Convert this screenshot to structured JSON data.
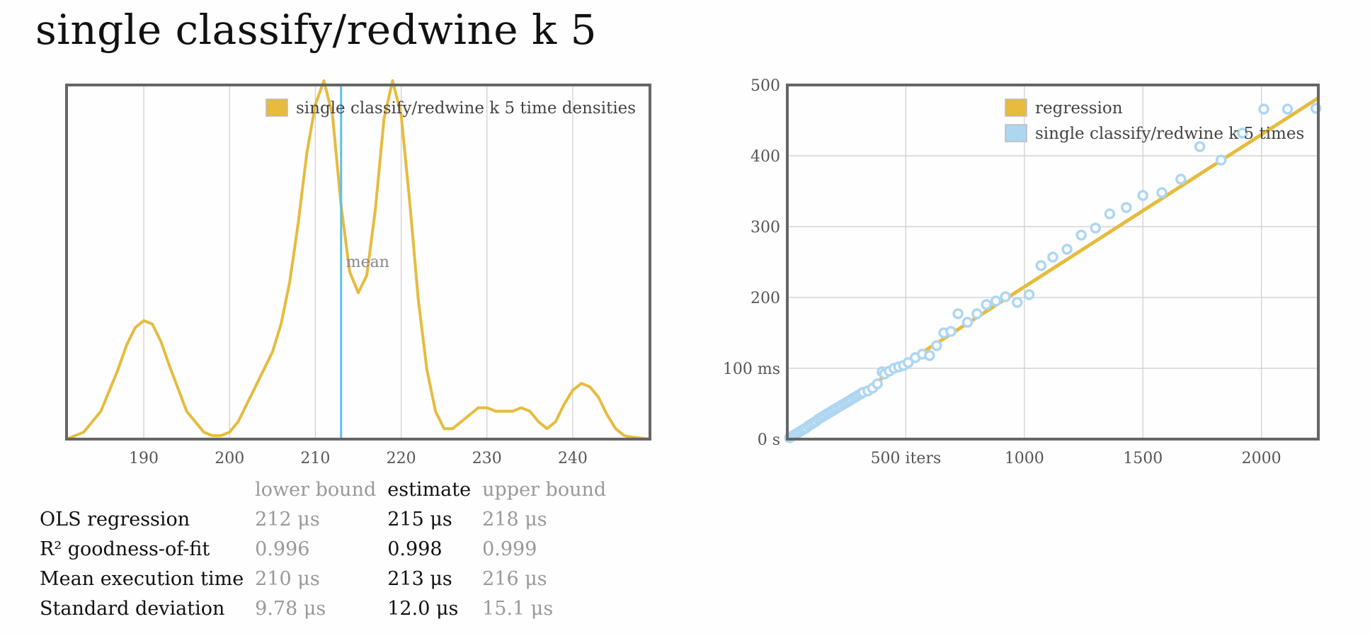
{
  "title": "single classify/redwine k 5",
  "colors": {
    "density": "#e6bb3e",
    "mean_line": "#5bc0eb",
    "regression": "#e6bb3e",
    "points": "#aed6f1",
    "frame": "#666666",
    "grid": "#cccccc"
  },
  "chart_data": [
    {
      "type": "line",
      "name": "kde",
      "legend": "single classify/redwine k 5 time densities",
      "xlim": [
        181,
        249
      ],
      "ylim": [
        0,
        1
      ],
      "x_ticks": [
        "190",
        "200",
        "210",
        "220",
        "230",
        "240"
      ],
      "x_tick_values": [
        190,
        200,
        210,
        220,
        230,
        240
      ],
      "mean_label": "mean",
      "mean": 213.0,
      "series": [
        {
          "name": "single classify/redwine k 5 time densities",
          "x": [
            181,
            183,
            185,
            187,
            188,
            189,
            190,
            191,
            192,
            193,
            195,
            197,
            198,
            199,
            200,
            201,
            202,
            203,
            204,
            205,
            206,
            207,
            208,
            209,
            210,
            211,
            212,
            213,
            214,
            215,
            216,
            217,
            218,
            219,
            220,
            221,
            222,
            223,
            224,
            225,
            226,
            227,
            228,
            229,
            230,
            231,
            232,
            233,
            234,
            235,
            236,
            237,
            238,
            239,
            240,
            241,
            242,
            243,
            244,
            245,
            246,
            247,
            249
          ],
          "values": [
            0.0,
            0.02,
            0.08,
            0.2,
            0.27,
            0.32,
            0.34,
            0.33,
            0.28,
            0.21,
            0.08,
            0.02,
            0.01,
            0.01,
            0.02,
            0.05,
            0.1,
            0.15,
            0.2,
            0.25,
            0.33,
            0.45,
            0.62,
            0.82,
            0.96,
            1.03,
            0.93,
            0.67,
            0.48,
            0.42,
            0.47,
            0.66,
            0.92,
            1.04,
            0.93,
            0.68,
            0.4,
            0.2,
            0.08,
            0.03,
            0.03,
            0.05,
            0.07,
            0.09,
            0.09,
            0.08,
            0.08,
            0.08,
            0.09,
            0.08,
            0.05,
            0.03,
            0.05,
            0.1,
            0.14,
            0.16,
            0.15,
            0.12,
            0.07,
            0.03,
            0.01,
            0.005,
            0.0
          ]
        }
      ]
    },
    {
      "type": "scatter",
      "name": "regression",
      "xlim": [
        0,
        2240
      ],
      "ylim": [
        0,
        500
      ],
      "x_ticks": [
        "500 iters",
        "1000",
        "1500",
        "2000"
      ],
      "x_tick_values": [
        500,
        1000,
        1500,
        2000
      ],
      "y_ticks": [
        "0 s",
        "100 ms",
        "200",
        "300",
        "400",
        "500"
      ],
      "y_tick_values": [
        0,
        100,
        200,
        300,
        400,
        500
      ],
      "legend": [
        "regression",
        "single classify/redwine k 5 times"
      ],
      "regression_line": {
        "x": [
          0,
          2240
        ],
        "y": [
          0,
          481.6
        ]
      },
      "series": [
        {
          "name": "single classify/redwine k 5 times",
          "x": [
            10,
            20,
            30,
            40,
            50,
            60,
            70,
            80,
            90,
            100,
            110,
            120,
            130,
            140,
            150,
            160,
            170,
            180,
            190,
            200,
            210,
            220,
            230,
            240,
            250,
            260,
            270,
            280,
            290,
            300,
            310,
            320,
            340,
            360,
            380,
            400,
            410,
            430,
            450,
            470,
            490,
            510,
            540,
            570,
            600,
            630,
            660,
            690,
            720,
            760,
            800,
            840,
            880,
            920,
            970,
            1020,
            1070,
            1120,
            1180,
            1240,
            1300,
            1360,
            1430,
            1500,
            1580,
            1660,
            1740,
            1830,
            1920,
            2010,
            2110,
            2230
          ],
          "values": [
            2,
            4,
            6,
            8,
            10,
            12,
            14,
            16,
            19,
            21,
            23,
            25,
            28,
            30,
            32,
            34,
            36,
            38,
            40,
            42,
            44,
            46,
            48,
            50,
            52,
            54,
            56,
            58,
            60,
            62,
            64,
            66,
            68,
            72,
            78,
            95,
            92,
            96,
            100,
            102,
            104,
            108,
            115,
            120,
            118,
            132,
            150,
            152,
            177,
            165,
            177,
            190,
            195,
            201,
            193,
            204,
            245,
            257,
            268,
            288,
            298,
            318,
            327,
            344,
            348,
            367,
            413,
            394,
            432,
            466,
            466,
            467
          ]
        }
      ]
    }
  ],
  "stats": {
    "headers": [
      "lower bound",
      "estimate",
      "upper bound"
    ],
    "rows": [
      {
        "label": "OLS regression",
        "lower": "212 μs",
        "estimate": "215 μs",
        "upper": "218 μs"
      },
      {
        "label": "R² goodness-of-fit",
        "lower": "0.996",
        "estimate": "0.998",
        "upper": "0.999"
      },
      {
        "label": "Mean execution time",
        "lower": "210 μs",
        "estimate": "213 μs",
        "upper": "216 μs"
      },
      {
        "label": "Standard deviation",
        "lower": "9.78 μs",
        "estimate": "12.0 μs",
        "upper": "15.1 μs"
      }
    ]
  }
}
